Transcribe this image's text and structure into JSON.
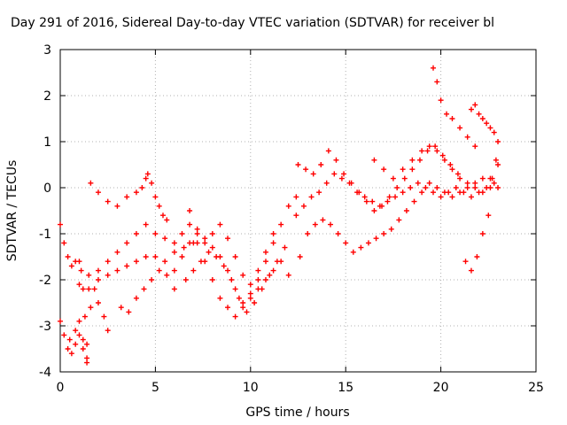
{
  "chart_data": {
    "type": "scatter",
    "title": "Day 291 of 2016, Sidereal Day-to-day VTEC variation (SDTVAR) for receiver bl",
    "xlabel": "GPS time / hours",
    "ylabel": "SDTVAR / TECUs",
    "xlim": [
      0,
      25
    ],
    "ylim": [
      -4,
      3
    ],
    "x_ticks": [
      0,
      5,
      10,
      15,
      20,
      25
    ],
    "y_ticks": [
      -4,
      -3,
      -2,
      -1,
      0,
      1,
      2,
      3
    ],
    "x_tick_labels": [
      "0",
      "5",
      "10",
      "15",
      "20",
      "25"
    ],
    "y_tick_labels": [
      "-4",
      "-3",
      "-2",
      "-1",
      "0",
      "1",
      "2",
      "3"
    ],
    "grid": true,
    "marker": "plus",
    "color": "#ff0000",
    "series": [
      {
        "x": [
          0.0,
          0.2,
          0.4,
          0.6,
          0.8,
          1.0,
          1.1,
          1.2,
          1.3,
          1.4,
          1.6,
          1.8,
          2.0,
          2.3,
          2.5
        ],
        "y": [
          -0.8,
          -1.2,
          -1.5,
          -1.7,
          -1.6,
          -1.6,
          -1.8,
          -2.2,
          -2.8,
          -3.4,
          -2.6,
          -2.2,
          -2.5,
          -2.8,
          -3.1
        ]
      },
      {
        "x": [
          0.0,
          0.2,
          0.4,
          0.6,
          0.8,
          1.0,
          1.2,
          1.4
        ],
        "y": [
          -2.9,
          -3.2,
          -3.5,
          -3.6,
          -3.4,
          -3.2,
          -3.5,
          -3.8
        ]
      },
      {
        "x": [
          0.5,
          0.8,
          1.0,
          1.2,
          1.4
        ],
        "y": [
          -3.3,
          -3.1,
          -2.9,
          -3.3,
          -3.7
        ]
      },
      {
        "x": [
          1.6,
          2.0,
          2.5,
          3.0,
          3.5,
          4.0,
          4.3,
          4.5,
          4.6,
          4.8,
          5.0,
          5.2,
          5.4,
          5.6
        ],
        "y": [
          0.1,
          -0.1,
          -0.3,
          -0.4,
          -0.2,
          -0.1,
          0.0,
          0.2,
          0.3,
          0.1,
          -0.2,
          -0.4,
          -0.6,
          -0.7
        ]
      },
      {
        "x": [
          1.0,
          1.5,
          2.0,
          2.5,
          3.0,
          3.5,
          4.0,
          4.5,
          5.0,
          5.5,
          6.0,
          6.5,
          7.0
        ],
        "y": [
          -2.1,
          -1.9,
          -1.8,
          -1.6,
          -1.4,
          -1.2,
          -1.0,
          -0.8,
          -1.0,
          -1.1,
          -1.2,
          -1.3,
          -1.2
        ]
      },
      {
        "x": [
          1.5,
          2.0,
          2.5,
          3.0,
          3.5,
          4.0,
          4.5,
          5.0,
          5.5,
          6.0
        ],
        "y": [
          -2.2,
          -2.0,
          -1.9,
          -1.8,
          -1.7,
          -1.6,
          -1.5,
          -1.5,
          -1.6,
          -1.8
        ]
      },
      {
        "x": [
          3.2,
          3.6,
          4.0,
          4.4,
          4.8,
          5.2,
          5.6,
          6.0
        ],
        "y": [
          -2.6,
          -2.7,
          -2.4,
          -2.2,
          -2.0,
          -1.8,
          -1.9,
          -2.2
        ]
      },
      {
        "x": [
          6.0,
          6.4,
          6.8,
          7.2,
          7.6,
          8.0,
          8.4,
          8.8,
          9.2,
          9.6,
          10.0,
          10.4,
          10.8,
          11.2,
          11.6,
          12.0
        ],
        "y": [
          -1.4,
          -1.0,
          -0.8,
          -1.2,
          -1.6,
          -2.0,
          -2.4,
          -2.6,
          -2.8,
          -2.6,
          -2.4,
          -2.2,
          -2.0,
          -1.8,
          -1.6,
          -1.9
        ]
      },
      {
        "x": [
          6.4,
          6.8,
          7.2,
          7.6,
          8.0,
          8.4,
          8.8,
          9.2,
          9.6,
          10.0,
          10.4,
          10.8,
          11.2,
          11.6,
          12.0,
          12.4
        ],
        "y": [
          -1.5,
          -1.2,
          -1.0,
          -1.1,
          -1.3,
          -1.5,
          -1.8,
          -2.2,
          -2.5,
          -2.3,
          -2.0,
          -1.6,
          -1.2,
          -0.8,
          -0.4,
          -0.2
        ]
      },
      {
        "x": [
          6.6,
          7.0,
          7.4,
          7.8,
          8.2,
          8.6,
          9.0,
          9.4,
          9.8,
          10.2,
          10.6,
          11.0,
          11.4,
          11.8
        ],
        "y": [
          -2.0,
          -1.8,
          -1.6,
          -1.4,
          -1.5,
          -1.7,
          -2.0,
          -2.4,
          -2.7,
          -2.5,
          -2.2,
          -1.9,
          -1.6,
          -1.3
        ]
      },
      {
        "x": [
          6.8,
          7.2,
          7.6,
          8.0,
          8.4,
          8.8,
          9.2,
          9.6,
          10.0,
          10.4,
          10.8,
          11.2
        ],
        "y": [
          -0.5,
          -0.9,
          -1.2,
          -1.0,
          -0.8,
          -1.1,
          -1.5,
          -1.9,
          -2.1,
          -1.8,
          -1.4,
          -1.0
        ]
      },
      {
        "x": [
          12.4,
          12.8,
          13.2,
          13.6,
          14.0,
          14.4,
          14.8,
          15.2,
          15.6,
          16.0,
          16.4,
          16.8,
          17.2,
          17.6,
          18.0,
          18.4,
          18.8,
          19.2,
          19.6,
          20.0,
          20.4,
          20.8,
          21.2,
          21.6,
          22.0,
          22.4,
          22.8
        ],
        "y": [
          -0.6,
          -0.4,
          -0.2,
          -0.1,
          0.1,
          0.3,
          0.2,
          0.1,
          -0.1,
          -0.2,
          -0.3,
          -0.4,
          -0.3,
          -0.2,
          -0.1,
          0.0,
          0.1,
          0.0,
          -0.1,
          -0.2,
          -0.1,
          0.0,
          -0.1,
          -0.2,
          -0.1,
          0.0,
          0.1
        ]
      },
      {
        "x": [
          12.6,
          13.0,
          13.4,
          13.8,
          14.2,
          14.6,
          15.0,
          15.4,
          15.8,
          16.2,
          16.6,
          17.0,
          17.4,
          17.8,
          18.2,
          18.6,
          19.0,
          19.4,
          19.8,
          20.2,
          20.6,
          21.0,
          21.4,
          21.8,
          22.2,
          22.6,
          23.0
        ],
        "y": [
          -1.5,
          -1.0,
          -0.8,
          -0.7,
          -0.8,
          -1.0,
          -1.2,
          -1.4,
          -1.3,
          -1.2,
          -1.1,
          -1.0,
          -0.9,
          -0.7,
          -0.5,
          -0.3,
          -0.1,
          0.1,
          0.0,
          -0.1,
          -0.2,
          -0.1,
          0.0,
          0.1,
          0.2,
          0.0,
          0.0
        ]
      },
      {
        "x": [
          12.5,
          12.9,
          13.3,
          13.7,
          14.1,
          14.5,
          14.9,
          15.3,
          15.7,
          16.1,
          16.5,
          16.9,
          17.3,
          17.7,
          18.1,
          18.5,
          18.9,
          19.3,
          19.7,
          20.1,
          20.5,
          20.9
        ],
        "y": [
          0.5,
          0.4,
          0.3,
          0.5,
          0.8,
          0.6,
          0.3,
          0.1,
          -0.1,
          -0.3,
          -0.5,
          -0.4,
          -0.2,
          0.0,
          0.2,
          0.4,
          0.6,
          0.8,
          0.9,
          0.7,
          0.5,
          0.3
        ]
      },
      {
        "x": [
          16.5,
          17.0,
          17.5,
          18.0,
          18.5,
          19.0,
          19.4,
          19.8,
          20.2,
          20.6,
          21.0,
          21.4,
          21.8,
          22.2,
          22.6,
          23.0
        ],
        "y": [
          0.6,
          0.4,
          0.2,
          0.4,
          0.6,
          0.8,
          0.9,
          0.8,
          0.6,
          0.4,
          0.2,
          0.1,
          0.0,
          -0.1,
          0.2,
          0.5
        ]
      },
      {
        "x": [
          19.6,
          19.8,
          20.0,
          20.3,
          20.6,
          21.0,
          21.4,
          21.8
        ],
        "y": [
          2.6,
          2.3,
          1.9,
          1.6,
          1.5,
          1.3,
          1.1,
          0.9
        ]
      },
      {
        "x": [
          21.6,
          21.8,
          22.0,
          22.2,
          22.4,
          22.6,
          22.8,
          23.0
        ],
        "y": [
          1.7,
          1.8,
          1.6,
          1.5,
          1.4,
          1.3,
          1.2,
          1.0
        ]
      },
      {
        "x": [
          21.3,
          21.6,
          21.9,
          22.2,
          22.5,
          22.7,
          22.9
        ],
        "y": [
          -1.6,
          -1.8,
          -1.5,
          -1.0,
          -0.6,
          0.2,
          0.6
        ]
      }
    ]
  }
}
